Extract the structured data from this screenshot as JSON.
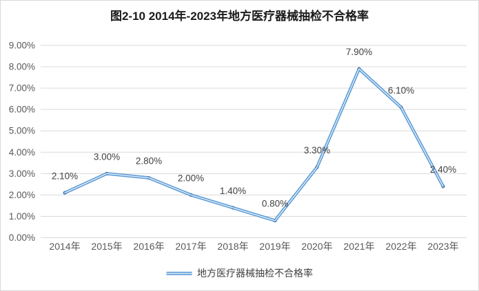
{
  "chart_data": {
    "type": "line",
    "title": "图2-10 2014年-2023年地方医疗器械抽检不合格率",
    "categories": [
      "2014年",
      "2015年",
      "2016年",
      "2017年",
      "2018年",
      "2019年",
      "2020年",
      "2021年",
      "2022年",
      "2023年"
    ],
    "series": [
      {
        "name": "地方医疗器械抽检不合格率",
        "values": [
          2.1,
          3.0,
          2.8,
          2.0,
          1.4,
          0.8,
          3.3,
          7.9,
          6.1,
          2.4
        ]
      }
    ],
    "data_labels": [
      "2.10%",
      "3.00%",
      "2.80%",
      "2.00%",
      "1.40%",
      "0.80%",
      "3.30%",
      "7.90%",
      "6.10%",
      "2.40%"
    ],
    "ytick_labels": [
      "0.00%",
      "1.00%",
      "2.00%",
      "3.00%",
      "4.00%",
      "5.00%",
      "6.00%",
      "7.00%",
      "8.00%",
      "9.00%"
    ],
    "ylim": [
      0,
      9
    ],
    "ytick_step": 1,
    "grid": true,
    "xlabel": "",
    "ylabel": "",
    "legend_position": "bottom",
    "legend_label": "地方医疗器械抽检不合格率",
    "colors": {
      "line": "#5b9bd5",
      "line_highlight": "#e3eef9",
      "marker": "#4e81bd",
      "grid": "#d9d9d9",
      "axis_text": "#595959",
      "data_label_text": "#3f3f3f",
      "title_text": "#1a1a1a",
      "border": "#d9d9d9"
    }
  }
}
